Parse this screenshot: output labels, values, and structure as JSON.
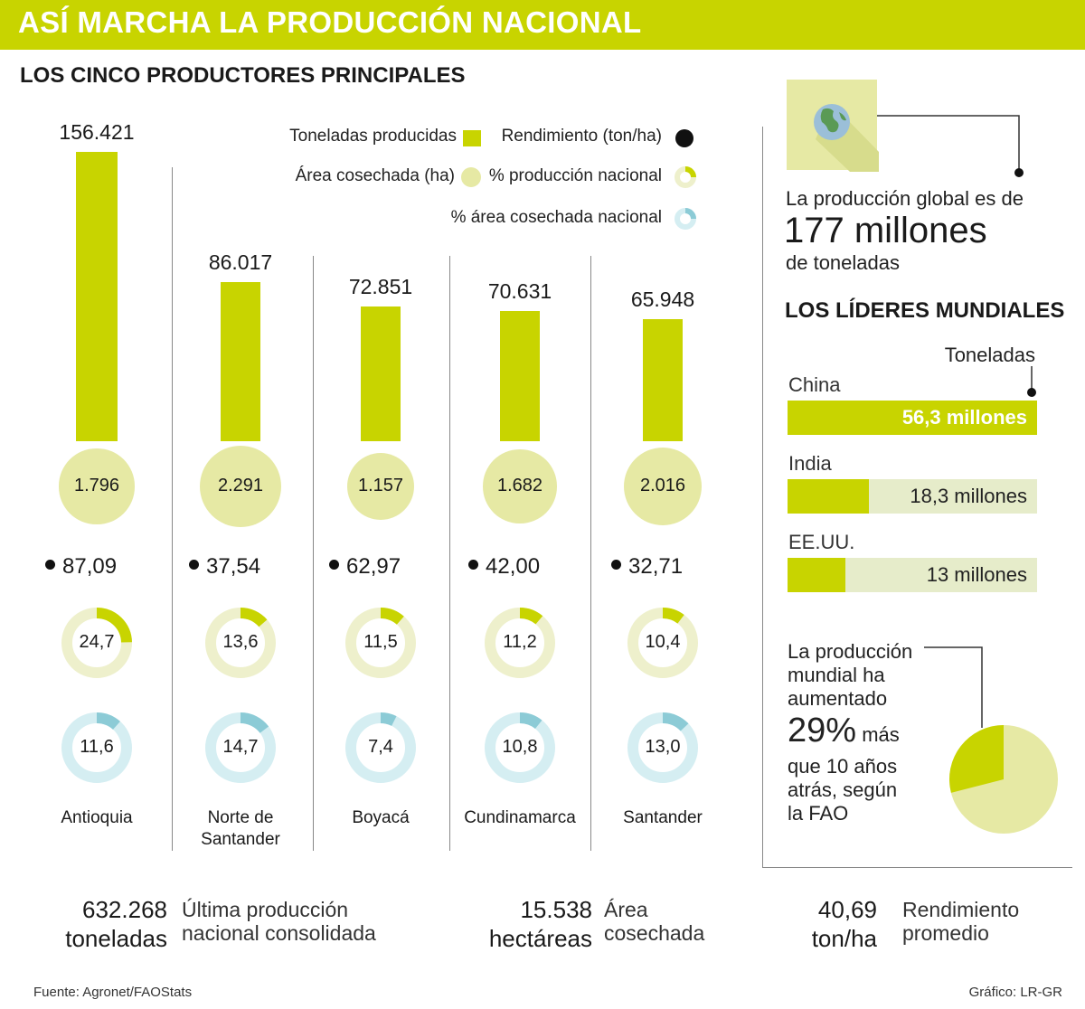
{
  "header": {
    "title": "ASÍ MARCHA LA PRODUCCIÓN NACIONAL"
  },
  "section_producers": {
    "title": "LOS CINCO PRODUCTORES PRINCIPALES"
  },
  "legend": {
    "tons": "Toneladas producidas",
    "yield": "Rendimiento (ton/ha)",
    "area": "Área cosechada (ha)",
    "pct_prod": "% producción nacional",
    "pct_area": "% área cosechada nacional"
  },
  "colors": {
    "accent": "#c8d400",
    "area": "#e6e9a4",
    "ring_bg": "#eef0cc",
    "blue": "#8ccbd6",
    "blue_bg": "#d5eef2"
  },
  "chart_data": {
    "type": "bar",
    "categories": [
      "Antioquia",
      "Norte de Santander",
      "Boyacá",
      "Cundinamarca",
      "Santander"
    ],
    "series": [
      {
        "name": "Toneladas producidas",
        "values": [
          156421,
          86017,
          72851,
          70631,
          65948
        ]
      },
      {
        "name": "Área cosechada (ha)",
        "values": [
          1796,
          2291,
          1157,
          1682,
          2016
        ]
      },
      {
        "name": "Rendimiento (ton/ha)",
        "values": [
          87.09,
          37.54,
          62.97,
          42.0,
          32.71
        ]
      },
      {
        "name": "% producción nacional",
        "values": [
          24.7,
          13.6,
          11.5,
          11.2,
          10.4
        ]
      },
      {
        "name": "% área cosechada nacional",
        "values": [
          11.6,
          14.7,
          7.4,
          10.8,
          13.0
        ]
      }
    ]
  },
  "producers": [
    {
      "name": "Antioquia",
      "tons": "156.421",
      "area": "1.796",
      "yield": "87,09",
      "pct_prod": "24,7",
      "pct_area": "11,6"
    },
    {
      "name": "Norte de Santander",
      "tons": "86.017",
      "area": "2.291",
      "yield": "37,54",
      "pct_prod": "13,6",
      "pct_area": "14,7"
    },
    {
      "name": "Boyacá",
      "tons": "72.851",
      "area": "1.157",
      "yield": "62,97",
      "pct_prod": "11,5",
      "pct_area": "7,4"
    },
    {
      "name": "Cundinamarca",
      "tons": "70.631",
      "area": "1.682",
      "yield": "42,00",
      "pct_prod": "11,2",
      "pct_area": "10,8"
    },
    {
      "name": "Santander",
      "tons": "65.948",
      "area": "2.016",
      "yield": "32,71",
      "pct_prod": "10,4",
      "pct_area": "13,0"
    }
  ],
  "global": {
    "intro": "La producción global es de",
    "amount": "177 millones",
    "unit": "de toneladas"
  },
  "leaders": {
    "title": "LOS LÍDERES MUNDIALES",
    "unit_label": "Toneladas",
    "chart_data": {
      "type": "bar",
      "categories": [
        "China",
        "India",
        "EE.UU."
      ],
      "values": [
        56.3,
        18.3,
        13
      ],
      "unit": "millones de toneladas"
    },
    "items": [
      {
        "country": "China",
        "label": "56,3 millones",
        "value": 56.3
      },
      {
        "country": "India",
        "label": "18,3 millones",
        "value": 18.3
      },
      {
        "country": "EE.UU.",
        "label": "13 millones",
        "value": 13
      }
    ]
  },
  "growth": {
    "line1": "La producción",
    "line2": "mundial ha",
    "line3": "aumentado",
    "pct": "29%",
    "pct_suffix": "más",
    "line5": "que 10 años",
    "line6": "atrás, según",
    "line7": "la FAO",
    "chart_data": {
      "type": "pie",
      "values": [
        29,
        71
      ]
    }
  },
  "summary": [
    {
      "number": "632.268",
      "unit": "toneladas",
      "desc1": "Última producción",
      "desc2": "nacional consolidada"
    },
    {
      "number": "15.538",
      "unit": "hectáreas",
      "desc1": "Área",
      "desc2": "cosechada"
    },
    {
      "number": "40,69",
      "unit": "ton/ha",
      "desc1": "Rendimiento",
      "desc2": "promedio"
    }
  ],
  "footer": {
    "source": "Fuente: Agronet/FAOStats",
    "credit": "Gráfico: LR-GR"
  }
}
